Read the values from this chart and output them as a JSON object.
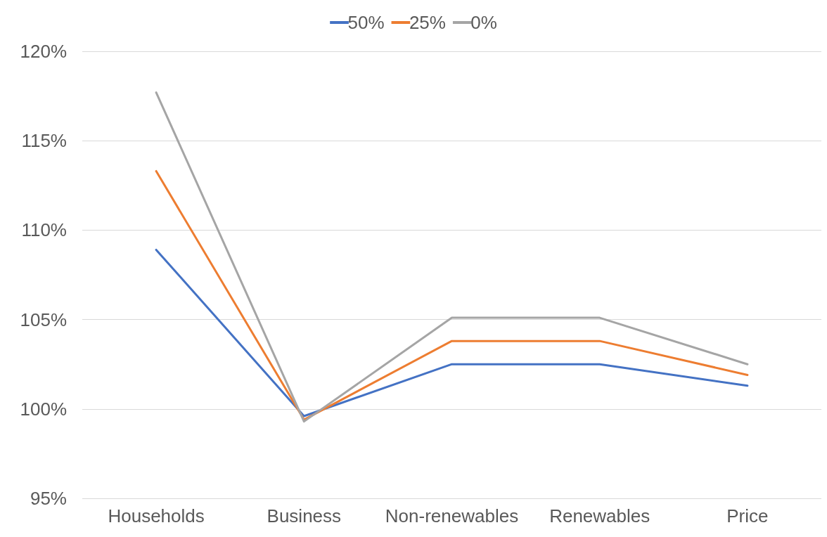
{
  "chart_data": {
    "type": "line",
    "categories": [
      "Households",
      "Business",
      "Non-renewables",
      "Renewables",
      "Price"
    ],
    "series": [
      {
        "name": "50%",
        "color": "#4472c4",
        "values": [
          108.9,
          99.6,
          102.5,
          102.5,
          101.3
        ]
      },
      {
        "name": "25%",
        "color": "#ed7d31",
        "values": [
          113.3,
          99.4,
          103.8,
          103.8,
          101.9
        ]
      },
      {
        "name": "0%",
        "color": "#a5a5a5",
        "values": [
          117.7,
          99.3,
          105.1,
          105.1,
          102.5
        ]
      }
    ],
    "ylim": [
      95,
      120
    ],
    "yticks": [
      {
        "value": 95,
        "label": "95%"
      },
      {
        "value": 100,
        "label": "100%"
      },
      {
        "value": 105,
        "label": "105%"
      },
      {
        "value": 110,
        "label": "110%"
      },
      {
        "value": 115,
        "label": "115%"
      },
      {
        "value": 120,
        "label": "120%"
      }
    ],
    "grid": "y",
    "legend": "top",
    "marker": "none",
    "line_style": "solid"
  }
}
